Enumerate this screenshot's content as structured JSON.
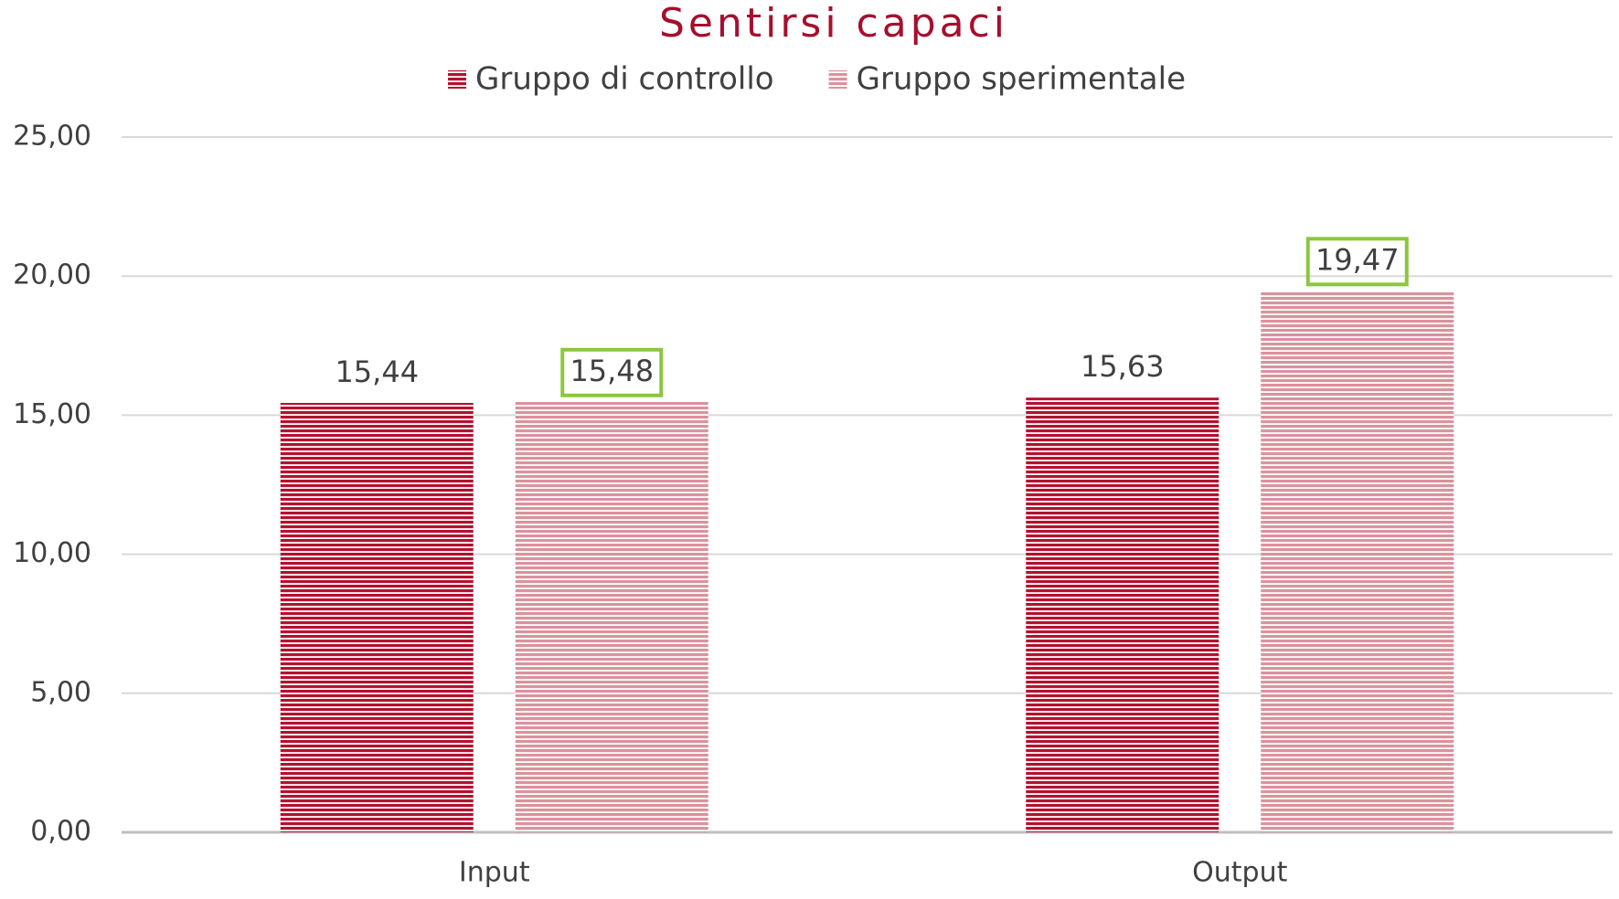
{
  "chart_data": {
    "type": "bar",
    "title": "Sentirsi capaci",
    "categories": [
      "Input",
      "Output"
    ],
    "series": [
      {
        "name": "Gruppo di controllo",
        "color": "#b3122f",
        "values": [
          15.44,
          15.63
        ],
        "value_labels": [
          "15,44",
          "15,63"
        ]
      },
      {
        "name": "Gruppo sperimentale",
        "color": "#d9939d",
        "values": [
          15.48,
          19.47
        ],
        "value_labels": [
          "15,48",
          "19,47"
        ]
      }
    ],
    "ylim": [
      0,
      25
    ],
    "yticks": [
      {
        "value": 0,
        "label": "0,00"
      },
      {
        "value": 5,
        "label": "5,00"
      },
      {
        "value": 10,
        "label": "10,00"
      },
      {
        "value": 15,
        "label": "15,00"
      },
      {
        "value": 20,
        "label": "20,00"
      },
      {
        "value": 25,
        "label": "25,00"
      }
    ],
    "grid": true,
    "legend": "top"
  }
}
